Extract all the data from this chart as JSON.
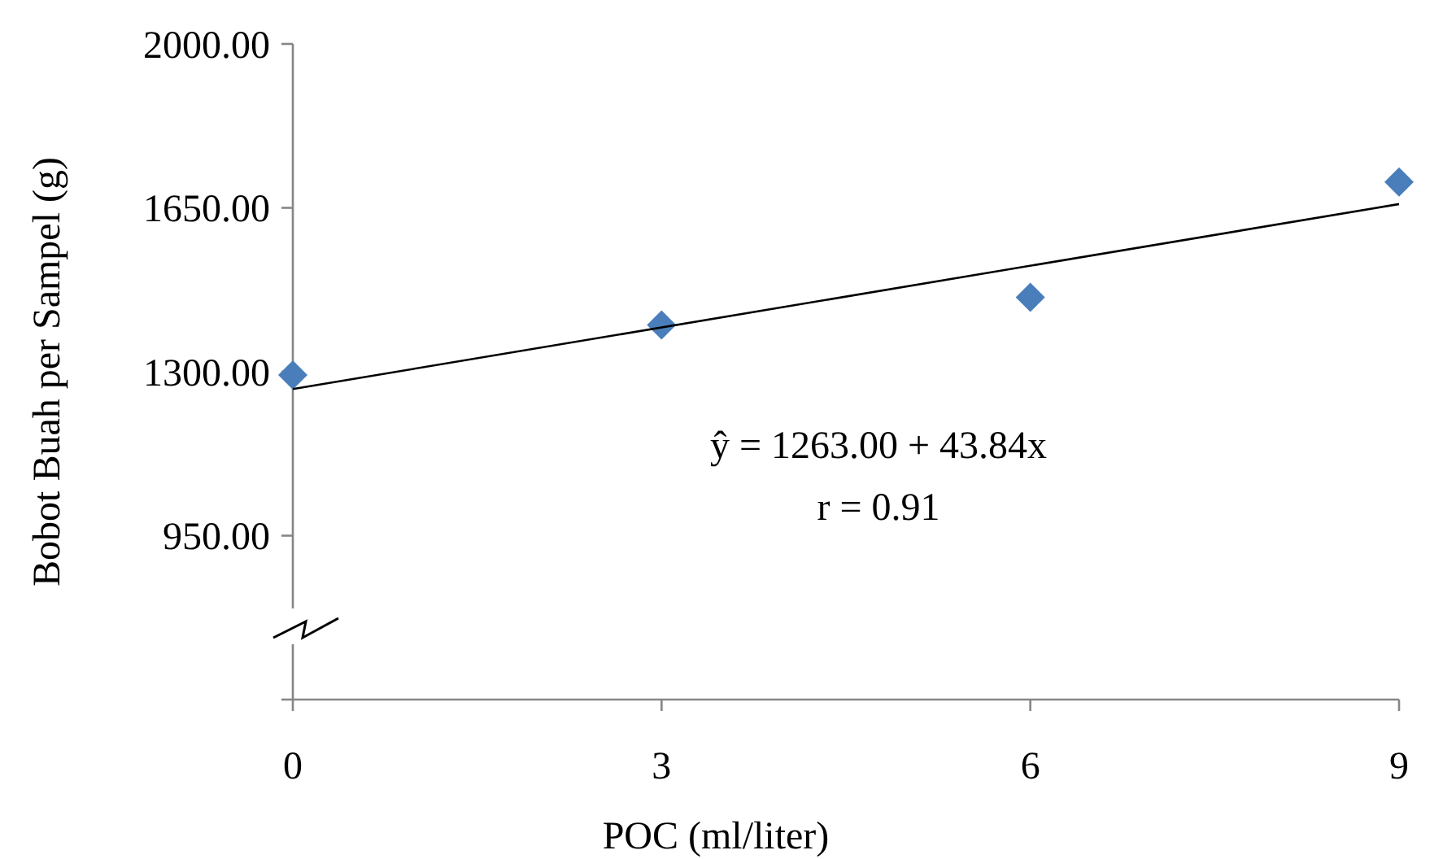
{
  "chart_data": {
    "type": "scatter",
    "xlabel": "POC (ml/liter)",
    "ylabel": "Bobot Buah per Sampel (g)",
    "xlim": [
      0,
      9
    ],
    "xticks": [
      0,
      3,
      6,
      9
    ],
    "ylim": [
      600,
      2000
    ],
    "yticks": [
      {
        "value": 950,
        "label": "950.00"
      },
      {
        "value": 1300,
        "label": "1300.00"
      },
      {
        "value": 1650,
        "label": "1650.00"
      },
      {
        "value": 2000,
        "label": "2000.00"
      }
    ],
    "grid": false,
    "series": [
      {
        "color": "#4a7ebb",
        "marker": "diamond",
        "x": [
          0,
          3,
          6,
          9
        ],
        "values": [
          1293,
          1400,
          1459,
          1705
        ]
      },
      {
        "type": "line",
        "color": "#000000",
        "line_style": "solid",
        "marker": "none",
        "x": [
          0,
          9
        ],
        "values": [
          1263,
          1658
        ]
      }
    ],
    "annotations": [
      "ŷ =  1263.00 + 43.84x",
      "r = 0.91"
    ]
  }
}
